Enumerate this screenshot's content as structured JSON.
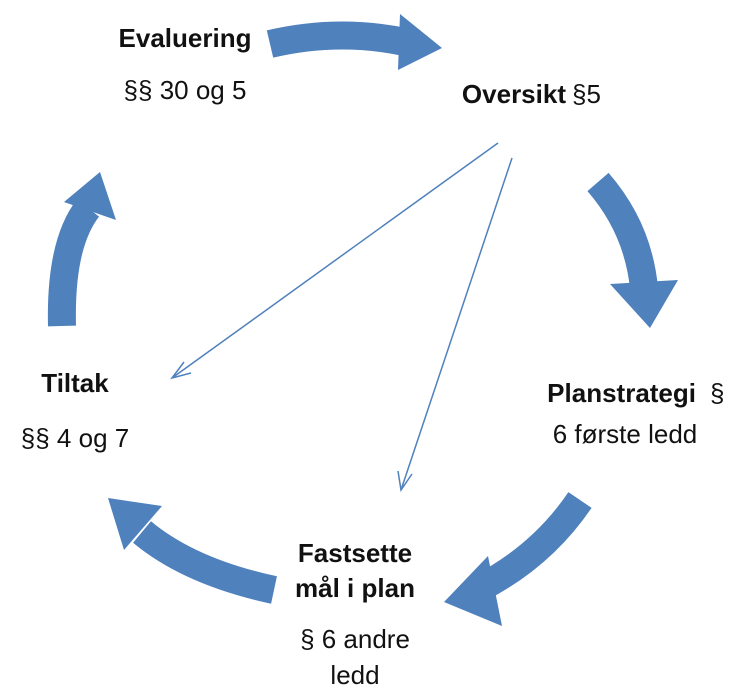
{
  "nodes": [
    {
      "title": [
        "Evaluering"
      ],
      "text": [
        "§§ 30 og 5"
      ]
    },
    {
      "title": [
        "Oversikt"
      ],
      "text": [
        "§5"
      ]
    },
    {
      "title": [
        "Planstrategi"
      ],
      "text": [
        "§",
        "6 første ledd"
      ]
    },
    {
      "title": [
        "Fastsette",
        "mål i plan"
      ],
      "text": [
        "§ 6 andre",
        "ledd"
      ]
    },
    {
      "title": [
        "Tiltak"
      ],
      "text": [
        "§§ 4 og 7"
      ]
    }
  ]
}
